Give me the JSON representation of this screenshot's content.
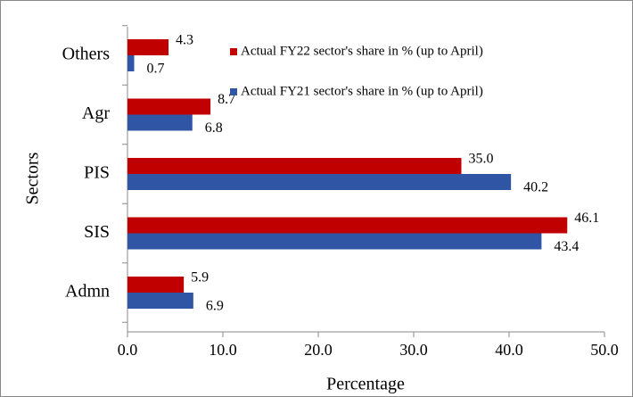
{
  "chart_data": {
    "type": "hbar",
    "x_label": "Percentage",
    "y_label": "Sectors",
    "categories": [
      "Others",
      "Agr",
      "PIS",
      "SIS",
      "Admn"
    ],
    "series": [
      {
        "name": "Actual FY22 sector's share in % (up to April)",
        "color": "#c00000",
        "values": [
          4.3,
          8.7,
          35.0,
          46.1,
          5.9
        ],
        "value_labels": [
          "4.3",
          "8.7",
          "35.0",
          "46.1",
          "5.9"
        ]
      },
      {
        "name": "Actual FY21 sector's share in % (up to April)",
        "color": "#2f55a4",
        "values": [
          0.7,
          6.8,
          40.2,
          43.4,
          6.9
        ],
        "value_labels": [
          "0.7",
          "6.8",
          "40.2",
          "43.4",
          "6.9"
        ]
      }
    ],
    "xlim": [
      0,
      50
    ],
    "xticks": [
      {
        "value": 0,
        "label": "0.0"
      },
      {
        "value": 10,
        "label": "10.0"
      },
      {
        "value": 20,
        "label": "20.0"
      },
      {
        "value": 30,
        "label": "30.0"
      },
      {
        "value": 40,
        "label": "40.0"
      },
      {
        "value": 50,
        "label": "50.0"
      }
    ],
    "legend": "top"
  }
}
